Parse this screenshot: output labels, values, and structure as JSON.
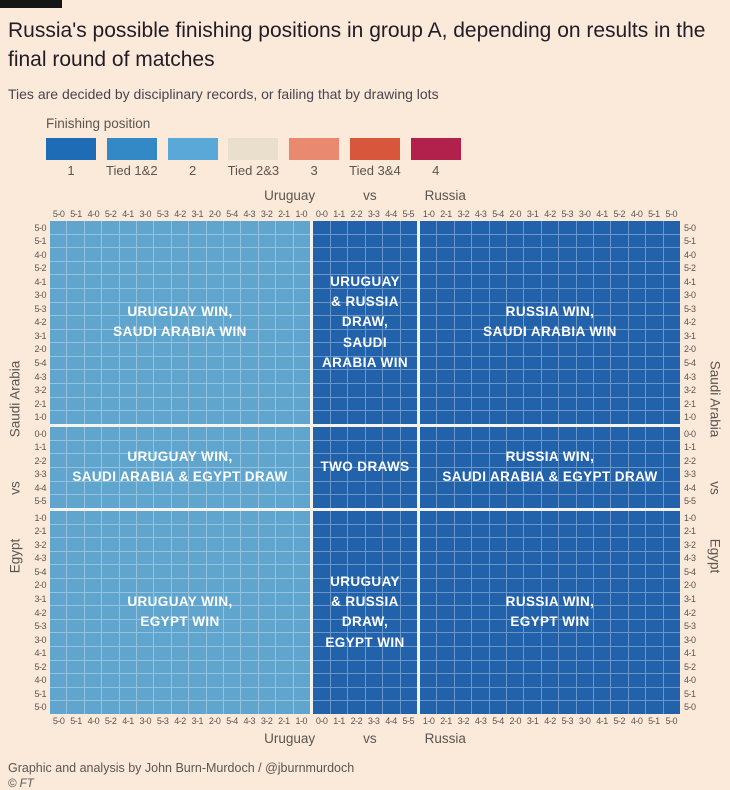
{
  "header": {
    "title": "Russia's possible finishing positions in group A, depending on results in the final round of matches",
    "subtitle": "Ties are decided by disciplinary records, or failing that by drawing lots"
  },
  "legend": {
    "title": "Finishing position",
    "items": [
      {
        "label": "1",
        "color": "#1e6cb5"
      },
      {
        "label": "Tied 1&2",
        "color": "#3389c5"
      },
      {
        "label": "2",
        "color": "#5aa8d8"
      },
      {
        "label": "Tied 2&3",
        "color": "#e9dfcc"
      },
      {
        "label": "3",
        "color": "#e98a70"
      },
      {
        "label": "Tied 3&4",
        "color": "#d8563c"
      },
      {
        "label": "4",
        "color": "#b2204c"
      }
    ]
  },
  "chart_data": {
    "type": "heatmap",
    "title": "Russia's possible finishing positions in group A, depending on results in the final round of matches",
    "x_axis": {
      "team_left": "Uruguay",
      "vs": "vs",
      "team_right": "Russia",
      "groups": [
        {
          "name": "uruguay-win",
          "scores": [
            "5-0",
            "5-1",
            "4-0",
            "5-2",
            "4-1",
            "3-0",
            "5-3",
            "4-2",
            "3-1",
            "2-0",
            "5-4",
            "4-3",
            "3-2",
            "2-1",
            "1-0"
          ]
        },
        {
          "name": "draw",
          "scores": [
            "0-0",
            "1-1",
            "2-2",
            "3-3",
            "4-4",
            "5-5"
          ]
        },
        {
          "name": "russia-win",
          "scores": [
            "1-0",
            "2-1",
            "3-2",
            "4-3",
            "5-4",
            "2-0",
            "3-1",
            "4-2",
            "5-3",
            "3-0",
            "4-1",
            "5-2",
            "4-0",
            "5-1",
            "5-0"
          ]
        }
      ]
    },
    "y_axis": {
      "team_top": "Saudi Arabia",
      "vs": "vs",
      "team_bottom": "Egypt",
      "groups": [
        {
          "name": "saudi-arabia-win",
          "scores": [
            "5-0",
            "5-1",
            "4-0",
            "5-2",
            "4-1",
            "3-0",
            "5-3",
            "4-2",
            "3-1",
            "2-0",
            "5-4",
            "4-3",
            "3-2",
            "2-1",
            "1-0"
          ]
        },
        {
          "name": "draw",
          "scores": [
            "0-0",
            "1-1",
            "2-2",
            "3-3",
            "4-4",
            "5-5"
          ]
        },
        {
          "name": "egypt-win",
          "scores": [
            "1-0",
            "2-1",
            "3-2",
            "4-3",
            "5-4",
            "2-0",
            "3-1",
            "4-2",
            "5-3",
            "3-0",
            "4-1",
            "5-2",
            "4-0",
            "5-1",
            "5-0"
          ]
        }
      ]
    },
    "regions": [
      {
        "row": "saudi-arabia-win",
        "col": "uruguay-win",
        "label": "URUGUAY WIN,\nSAUDI ARABIA WIN",
        "russia_finishing_position": "2"
      },
      {
        "row": "saudi-arabia-win",
        "col": "draw",
        "label": "URUGUAY\n& RUSSIA\nDRAW,\nSAUDI\nARABIA WIN",
        "russia_finishing_position": "1"
      },
      {
        "row": "saudi-arabia-win",
        "col": "russia-win",
        "label": "RUSSIA WIN,\nSAUDI ARABIA WIN",
        "russia_finishing_position": "1"
      },
      {
        "row": "draw",
        "col": "uruguay-win",
        "label": "URUGUAY WIN,\nSAUDI ARABIA & EGYPT DRAW",
        "russia_finishing_position": "2"
      },
      {
        "row": "draw",
        "col": "draw",
        "label": "TWO DRAWS",
        "russia_finishing_position": "1"
      },
      {
        "row": "draw",
        "col": "russia-win",
        "label": "RUSSIA WIN,\nSAUDI ARABIA & EGYPT DRAW",
        "russia_finishing_position": "1"
      },
      {
        "row": "egypt-win",
        "col": "uruguay-win",
        "label": "URUGUAY WIN,\nEGYPT WIN",
        "russia_finishing_position": "2"
      },
      {
        "row": "egypt-win",
        "col": "draw",
        "label": "URUGUAY\n& RUSSIA\nDRAW,\nEGYPT WIN",
        "russia_finishing_position": "1"
      },
      {
        "row": "egypt-win",
        "col": "russia-win",
        "label": "RUSSIA WIN,\nEGYPT WIN",
        "russia_finishing_position": "1"
      }
    ],
    "cell_colors": {
      "1": "#2162aa",
      "2": "#60a5ce"
    },
    "gridline_colors": {
      "1": "#6b97c8",
      "2": "#95c3de"
    },
    "section_separator_color": "#f7f3ea",
    "background_color": "#fbe9da"
  },
  "footer": {
    "credit": "Graphic and analysis by John Burn-Murdoch / @jburnmurdoch",
    "copyright": "© FT"
  }
}
